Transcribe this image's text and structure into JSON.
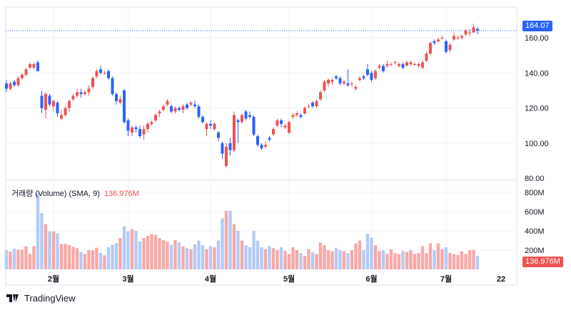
{
  "volume_indicator": {
    "label": "거래량 (Volume) (SMA, 9)",
    "value": "136.976M"
  },
  "last_price_label": "164.07",
  "volume_last_label": "136.976M",
  "brand": "TradingView",
  "colors": {
    "up": "#ef5350",
    "down": "#2962ff",
    "vol_up": "#f7a9a7",
    "vol_down": "#b3cbf7",
    "grid": "#f0f3fa"
  },
  "chart_data": {
    "type": "candlestick",
    "price_axis": {
      "ticks": [
        "160.00",
        "140.00",
        "120.00",
        "100.00",
        "80.00"
      ],
      "tick_values": [
        160,
        140,
        120,
        100,
        80
      ],
      "range": [
        80,
        165
      ]
    },
    "volume_axis": {
      "ticks": [
        "800M",
        "600M",
        "400M",
        "200M"
      ],
      "tick_values": [
        800,
        600,
        400,
        200
      ]
    },
    "time_axis": {
      "ticks": [
        "2월",
        "3월",
        "4월",
        "5월",
        "6월",
        "7월",
        "22"
      ],
      "tick_index": [
        12,
        31,
        52,
        72,
        93,
        112,
        126
      ]
    },
    "last_price": 164.07,
    "candles_ohlc": [
      [
        134,
        136,
        129,
        131
      ],
      [
        131,
        135,
        130,
        134
      ],
      [
        135,
        136,
        132,
        133
      ],
      [
        133,
        138,
        132,
        137
      ],
      [
        137,
        140,
        136,
        139
      ],
      [
        139,
        143,
        138,
        142
      ],
      [
        143,
        146,
        142,
        145
      ],
      [
        143,
        146,
        142,
        145
      ],
      [
        146,
        147,
        141,
        141
      ],
      [
        127,
        130,
        117,
        120
      ],
      [
        119,
        129,
        114,
        128
      ],
      [
        127,
        128,
        121,
        122
      ],
      [
        121,
        125,
        118,
        124
      ],
      [
        123,
        124,
        115,
        117
      ],
      [
        114,
        119,
        113,
        116
      ],
      [
        116,
        121,
        115,
        120
      ],
      [
        120,
        125,
        118,
        124
      ],
      [
        125,
        128,
        124,
        127
      ],
      [
        127,
        131,
        126,
        129
      ],
      [
        129,
        131,
        126,
        128
      ],
      [
        128,
        130,
        127,
        129
      ],
      [
        129,
        133,
        127,
        131
      ],
      [
        132,
        138,
        131,
        137
      ],
      [
        138,
        142,
        137,
        141
      ],
      [
        142,
        144,
        139,
        140
      ],
      [
        140,
        141,
        139,
        140
      ],
      [
        141,
        142,
        136,
        137
      ],
      [
        137,
        138,
        127,
        128
      ],
      [
        128,
        129,
        122,
        124
      ],
      [
        123,
        127,
        122,
        125
      ],
      [
        130,
        131,
        111,
        112
      ],
      [
        113,
        114,
        104,
        107
      ],
      [
        106,
        110,
        104,
        109
      ],
      [
        109,
        110,
        106,
        108
      ],
      [
        108,
        110,
        103,
        104
      ],
      [
        105,
        110,
        102,
        108
      ],
      [
        108,
        112,
        106,
        111
      ],
      [
        111,
        113,
        110,
        112
      ],
      [
        113,
        117,
        112,
        116
      ],
      [
        117,
        119,
        115,
        118
      ],
      [
        119,
        122,
        118,
        121
      ],
      [
        122,
        125,
        121,
        124
      ],
      [
        121,
        122,
        117,
        118
      ],
      [
        118,
        121,
        117,
        120
      ],
      [
        120,
        121,
        118,
        119
      ],
      [
        119,
        122,
        117,
        121
      ],
      [
        122,
        123,
        119,
        120
      ],
      [
        122,
        124,
        121,
        123
      ],
      [
        122,
        124,
        120,
        121
      ],
      [
        121,
        122,
        114,
        115
      ],
      [
        115,
        116,
        111,
        112
      ],
      [
        108,
        112,
        104,
        111
      ],
      [
        111,
        113,
        108,
        110
      ],
      [
        108,
        112,
        107,
        111
      ],
      [
        106,
        107,
        101,
        103
      ],
      [
        100,
        101,
        91,
        94
      ],
      [
        87,
        100,
        86,
        98
      ],
      [
        100,
        103,
        93,
        96
      ],
      [
        96,
        118,
        95,
        116
      ],
      [
        113,
        114,
        100,
        112
      ],
      [
        112,
        117,
        111,
        116
      ],
      [
        118,
        119,
        113,
        114
      ],
      [
        116,
        118,
        114,
        115
      ],
      [
        115,
        116,
        104,
        105
      ],
      [
        104,
        105,
        98,
        99
      ],
      [
        99,
        100,
        96,
        97
      ],
      [
        98,
        101,
        97,
        99
      ],
      [
        103,
        104,
        101,
        102
      ],
      [
        105,
        109,
        104,
        108
      ],
      [
        110,
        114,
        109,
        113
      ],
      [
        113,
        114,
        109,
        111
      ],
      [
        109,
        111,
        108,
        110
      ],
      [
        106,
        113,
        105,
        112
      ],
      [
        115,
        117,
        114,
        116
      ],
      [
        116,
        118,
        115,
        117
      ],
      [
        116,
        117,
        114,
        115
      ],
      [
        117,
        121,
        116,
        120
      ],
      [
        121,
        122,
        120,
        121
      ],
      [
        123,
        124,
        120,
        121
      ],
      [
        121,
        125,
        120,
        124
      ],
      [
        125,
        130,
        124,
        129
      ],
      [
        130,
        136,
        129,
        135
      ],
      [
        134,
        137,
        132,
        136
      ],
      [
        135,
        137,
        133,
        136
      ],
      [
        138,
        139,
        136,
        137
      ],
      [
        137,
        138,
        133,
        134
      ],
      [
        134,
        136,
        133,
        135
      ],
      [
        134,
        142,
        132,
        133
      ],
      [
        134,
        135,
        132,
        134
      ],
      [
        131,
        133,
        130,
        132
      ],
      [
        136,
        138,
        135,
        137
      ],
      [
        138,
        139,
        136,
        137
      ],
      [
        142,
        145,
        138,
        139
      ],
      [
        140,
        141,
        135,
        136
      ],
      [
        137,
        142,
        136,
        141
      ],
      [
        143,
        145,
        142,
        144
      ],
      [
        144,
        145,
        140,
        141
      ],
      [
        144,
        147,
        143,
        145
      ],
      [
        145,
        146,
        144,
        145
      ],
      [
        146,
        147,
        145,
        146
      ],
      [
        144,
        146,
        143,
        145
      ],
      [
        145,
        146,
        142,
        143
      ],
      [
        144,
        147,
        144,
        146
      ],
      [
        145,
        147,
        144,
        146
      ],
      [
        145,
        146,
        144,
        145
      ],
      [
        144,
        146,
        143,
        145
      ],
      [
        143,
        147,
        142,
        146
      ],
      [
        147,
        152,
        146,
        151
      ],
      [
        151,
        158,
        150,
        157
      ],
      [
        158,
        159,
        156,
        157
      ],
      [
        158,
        160,
        157,
        159
      ],
      [
        160,
        161,
        159,
        160
      ],
      [
        158,
        159,
        151,
        152
      ],
      [
        153,
        157,
        152,
        156
      ],
      [
        159,
        163,
        158,
        161
      ],
      [
        160,
        161,
        159,
        160
      ],
      [
        160,
        162,
        159,
        161
      ],
      [
        162,
        165,
        161,
        164
      ],
      [
        163,
        165,
        161,
        163
      ],
      [
        163,
        168,
        163,
        166
      ],
      [
        165,
        166,
        162,
        164.07
      ]
    ],
    "volume_millions": [
      198,
      185,
      215,
      205,
      205,
      240,
      160,
      240,
      790,
      585,
      470,
      395,
      395,
      375,
      265,
      265,
      255,
      235,
      220,
      180,
      160,
      200,
      200,
      225,
      173,
      145,
      230,
      255,
      272,
      326,
      447,
      395,
      420,
      400,
      289,
      326,
      348,
      368,
      358,
      326,
      304,
      289,
      255,
      304,
      280,
      240,
      220,
      210,
      260,
      300,
      250,
      210,
      240,
      230,
      300,
      530,
      610,
      610,
      470,
      400,
      300,
      250,
      230,
      400,
      300,
      230,
      210,
      240,
      220,
      200,
      230,
      190,
      160,
      230,
      200,
      170,
      140,
      210,
      180,
      160,
      280,
      250,
      200,
      190,
      220,
      200,
      190,
      170,
      200,
      270,
      300,
      200,
      370,
      330,
      250,
      190,
      200,
      160,
      210,
      170,
      160,
      190,
      180,
      200,
      160,
      170,
      240,
      170,
      270,
      200,
      270,
      210,
      230,
      170,
      160,
      150,
      190,
      160,
      200,
      200,
      140
    ]
  }
}
